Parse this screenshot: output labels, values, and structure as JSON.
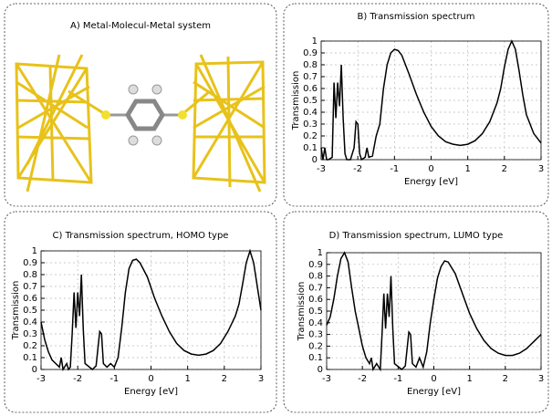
{
  "image_panel": {
    "title": "A) Metal-Molecul-Metal system"
  },
  "chart_data": [
    {
      "type": "line",
      "title": "B) Transmission spectrum",
      "xlabel": "Energy [eV]",
      "ylabel": "Transmission",
      "color": "#000000",
      "grid": true,
      "xlim": [
        -3,
        3
      ],
      "ylim": [
        0,
        1
      ],
      "xticks": [
        -3,
        -2,
        -1,
        0,
        1,
        2,
        3
      ],
      "yticks": [
        0,
        0.1,
        0.2,
        0.3,
        0.4,
        0.5,
        0.6,
        0.7,
        0.8,
        0.9,
        1
      ],
      "x": [
        -3.0,
        -2.95,
        -2.9,
        -2.85,
        -2.8,
        -2.7,
        -2.65,
        -2.6,
        -2.55,
        -2.5,
        -2.45,
        -2.4,
        -2.35,
        -2.3,
        -2.2,
        -2.1,
        -2.05,
        -2.0,
        -1.95,
        -1.9,
        -1.8,
        -1.75,
        -1.7,
        -1.6,
        -1.5,
        -1.4,
        -1.3,
        -1.2,
        -1.1,
        -1.0,
        -0.9,
        -0.8,
        -0.6,
        -0.4,
        -0.2,
        0,
        0.2,
        0.4,
        0.6,
        0.8,
        1.0,
        1.2,
        1.4,
        1.6,
        1.8,
        1.9,
        2.0,
        2.1,
        2.2,
        2.3,
        2.4,
        2.5,
        2.6,
        2.8,
        3.0
      ],
      "values": [
        0.1,
        0.0,
        0.1,
        0.0,
        0.0,
        0.02,
        0.65,
        0.35,
        0.65,
        0.45,
        0.8,
        0.35,
        0.05,
        0.0,
        0.0,
        0.1,
        0.32,
        0.3,
        0.05,
        0.0,
        0.02,
        0.1,
        0.02,
        0.03,
        0.2,
        0.3,
        0.6,
        0.8,
        0.9,
        0.93,
        0.92,
        0.88,
        0.72,
        0.55,
        0.4,
        0.28,
        0.2,
        0.15,
        0.13,
        0.12,
        0.13,
        0.16,
        0.22,
        0.32,
        0.48,
        0.6,
        0.78,
        0.93,
        1.0,
        0.93,
        0.75,
        0.55,
        0.38,
        0.22,
        0.14
      ]
    },
    {
      "type": "line",
      "title": "C) Transmission spectrum, HOMO type",
      "xlabel": "Energy [eV]",
      "ylabel": "Transmission",
      "color": "#000000",
      "grid": true,
      "xlim": [
        -3,
        3
      ],
      "ylim": [
        0,
        1
      ],
      "xticks": [
        -3,
        -2,
        -1,
        0,
        1,
        2,
        3
      ],
      "yticks": [
        0,
        0.1,
        0.2,
        0.3,
        0.4,
        0.5,
        0.6,
        0.7,
        0.8,
        0.9,
        1
      ],
      "x": [
        -3.0,
        -2.9,
        -2.8,
        -2.7,
        -2.5,
        -2.45,
        -2.4,
        -2.3,
        -2.25,
        -2.2,
        -2.15,
        -2.1,
        -2.05,
        -2.0,
        -1.95,
        -1.9,
        -1.85,
        -1.8,
        -1.6,
        -1.5,
        -1.4,
        -1.35,
        -1.3,
        -1.2,
        -1.1,
        -1.0,
        -0.9,
        -0.8,
        -0.7,
        -0.6,
        -0.5,
        -0.4,
        -0.3,
        -0.1,
        0.1,
        0.3,
        0.5,
        0.7,
        0.9,
        1.1,
        1.3,
        1.5,
        1.7,
        1.9,
        2.1,
        2.3,
        2.4,
        2.5,
        2.6,
        2.7,
        2.8,
        2.9,
        3.0
      ],
      "values": [
        0.4,
        0.25,
        0.15,
        0.08,
        0.02,
        0.1,
        0.0,
        0.05,
        0.0,
        0.02,
        0.3,
        0.65,
        0.35,
        0.65,
        0.45,
        0.8,
        0.35,
        0.05,
        0.0,
        0.03,
        0.32,
        0.3,
        0.05,
        0.02,
        0.05,
        0.02,
        0.1,
        0.35,
        0.65,
        0.85,
        0.92,
        0.93,
        0.9,
        0.78,
        0.6,
        0.45,
        0.32,
        0.22,
        0.16,
        0.13,
        0.12,
        0.13,
        0.16,
        0.22,
        0.32,
        0.45,
        0.55,
        0.72,
        0.9,
        1.0,
        0.9,
        0.7,
        0.5
      ]
    },
    {
      "type": "line",
      "title": "D) Transmission spectrum, LUMO type",
      "xlabel": "Energy [eV]",
      "ylabel": "Transmission",
      "color": "#000000",
      "grid": true,
      "xlim": [
        -3,
        3
      ],
      "ylim": [
        0,
        1
      ],
      "xticks": [
        -3,
        -2,
        -1,
        0,
        1,
        2,
        3
      ],
      "yticks": [
        0,
        0.1,
        0.2,
        0.3,
        0.4,
        0.5,
        0.6,
        0.7,
        0.8,
        0.9,
        1
      ],
      "x": [
        -3.0,
        -2.9,
        -2.8,
        -2.7,
        -2.6,
        -2.5,
        -2.4,
        -2.3,
        -2.2,
        -2.1,
        -2.0,
        -1.9,
        -1.8,
        -1.75,
        -1.7,
        -1.6,
        -1.5,
        -1.45,
        -1.4,
        -1.35,
        -1.3,
        -1.25,
        -1.2,
        -1.15,
        -1.1,
        -0.9,
        -0.8,
        -0.7,
        -0.65,
        -0.6,
        -0.5,
        -0.4,
        -0.3,
        -0.2,
        -0.1,
        0.0,
        0.1,
        0.2,
        0.3,
        0.4,
        0.6,
        0.8,
        1.0,
        1.2,
        1.4,
        1.6,
        1.8,
        2.0,
        2.2,
        2.4,
        2.6,
        2.8,
        3.0
      ],
      "values": [
        0.38,
        0.45,
        0.6,
        0.8,
        0.95,
        1.0,
        0.92,
        0.7,
        0.5,
        0.35,
        0.2,
        0.1,
        0.05,
        0.1,
        0.0,
        0.05,
        0.0,
        0.3,
        0.65,
        0.35,
        0.65,
        0.45,
        0.8,
        0.35,
        0.05,
        0.0,
        0.03,
        0.32,
        0.3,
        0.05,
        0.02,
        0.1,
        0.02,
        0.15,
        0.4,
        0.6,
        0.78,
        0.88,
        0.93,
        0.92,
        0.82,
        0.65,
        0.48,
        0.35,
        0.25,
        0.18,
        0.14,
        0.12,
        0.12,
        0.14,
        0.18,
        0.24,
        0.3
      ]
    }
  ]
}
